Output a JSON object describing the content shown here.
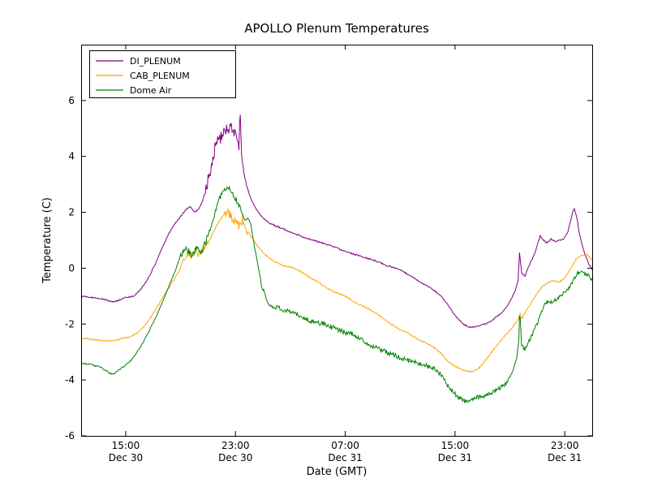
{
  "figure": {
    "background": "#ffffff",
    "frame_color": "#000000"
  },
  "chart_data": {
    "type": "line",
    "title": "APOLLO Plenum Temperatures",
    "xlabel": "Date (GMT)",
    "ylabel": "Temperature (C)",
    "x_unit": "hours since Dec 30 00:00 GMT",
    "xlim": [
      11.75,
      49.0
    ],
    "ylim": [
      -6,
      8
    ],
    "yticks": [
      -6,
      -4,
      -2,
      0,
      2,
      4,
      6
    ],
    "xticks": [
      {
        "t": 15,
        "time": "15:00",
        "date": "Dec 30"
      },
      {
        "t": 23,
        "time": "23:00",
        "date": "Dec 30"
      },
      {
        "t": 31,
        "time": "07:00",
        "date": "Dec 31"
      },
      {
        "t": 39,
        "time": "15:00",
        "date": "Dec 31"
      },
      {
        "t": 47,
        "time": "23:00",
        "date": "Dec 31"
      }
    ],
    "grid": false,
    "legend_position": "upper left",
    "noise_base": 0.025,
    "series": [
      {
        "name": "DI_PLENUM",
        "color": "#800080",
        "noise": [
          {
            "from": 20.8,
            "to": 23.25,
            "amp": 0.22
          }
        ],
        "points": [
          [
            11.75,
            -1.0
          ],
          [
            12.5,
            -1.05
          ],
          [
            13.3,
            -1.1
          ],
          [
            14.0,
            -1.2
          ],
          [
            14.5,
            -1.15
          ],
          [
            15.0,
            -1.05
          ],
          [
            15.6,
            -1.0
          ],
          [
            16.1,
            -0.75
          ],
          [
            16.6,
            -0.4
          ],
          [
            17.1,
            0.1
          ],
          [
            17.6,
            0.65
          ],
          [
            18.1,
            1.2
          ],
          [
            18.6,
            1.6
          ],
          [
            19.0,
            1.85
          ],
          [
            19.4,
            2.1
          ],
          [
            19.7,
            2.2
          ],
          [
            20.0,
            2.0
          ],
          [
            20.3,
            2.1
          ],
          [
            20.6,
            2.4
          ],
          [
            20.9,
            2.9
          ],
          [
            21.2,
            3.6
          ],
          [
            21.5,
            4.3
          ],
          [
            21.8,
            4.6
          ],
          [
            22.1,
            4.8
          ],
          [
            22.4,
            5.0
          ],
          [
            22.7,
            5.1
          ],
          [
            22.9,
            4.9
          ],
          [
            23.1,
            4.5
          ],
          [
            23.25,
            4.2
          ],
          [
            23.33,
            5.8
          ],
          [
            23.45,
            4.0
          ],
          [
            23.65,
            3.3
          ],
          [
            23.9,
            2.8
          ],
          [
            24.2,
            2.4
          ],
          [
            24.6,
            2.05
          ],
          [
            25.0,
            1.8
          ],
          [
            25.5,
            1.6
          ],
          [
            26.0,
            1.5
          ],
          [
            26.5,
            1.4
          ],
          [
            27.0,
            1.3
          ],
          [
            28.0,
            1.1
          ],
          [
            29.0,
            0.95
          ],
          [
            30.0,
            0.8
          ],
          [
            31.0,
            0.6
          ],
          [
            32.0,
            0.45
          ],
          [
            33.0,
            0.3
          ],
          [
            34.0,
            0.1
          ],
          [
            35.0,
            -0.05
          ],
          [
            35.5,
            -0.2
          ],
          [
            36.0,
            -0.35
          ],
          [
            36.5,
            -0.5
          ],
          [
            37.0,
            -0.65
          ],
          [
            37.5,
            -0.8
          ],
          [
            38.0,
            -1.0
          ],
          [
            38.4,
            -1.25
          ],
          [
            38.8,
            -1.55
          ],
          [
            39.2,
            -1.8
          ],
          [
            39.6,
            -2.0
          ],
          [
            40.0,
            -2.1
          ],
          [
            40.4,
            -2.1
          ],
          [
            40.8,
            -2.05
          ],
          [
            41.2,
            -2.0
          ],
          [
            41.6,
            -1.9
          ],
          [
            42.0,
            -1.75
          ],
          [
            42.4,
            -1.6
          ],
          [
            42.8,
            -1.35
          ],
          [
            43.1,
            -1.1
          ],
          [
            43.4,
            -0.8
          ],
          [
            43.6,
            -0.45
          ],
          [
            43.7,
            0.55
          ],
          [
            43.85,
            -0.15
          ],
          [
            44.1,
            -0.3
          ],
          [
            44.4,
            0.1
          ],
          [
            44.8,
            0.5
          ],
          [
            45.2,
            1.15
          ],
          [
            45.45,
            1.0
          ],
          [
            45.7,
            0.9
          ],
          [
            46.0,
            1.05
          ],
          [
            46.3,
            0.95
          ],
          [
            46.6,
            1.0
          ],
          [
            46.9,
            1.05
          ],
          [
            47.2,
            1.25
          ],
          [
            47.55,
            1.95
          ],
          [
            47.7,
            2.15
          ],
          [
            47.9,
            1.75
          ],
          [
            48.1,
            1.15
          ],
          [
            48.45,
            0.5
          ],
          [
            48.75,
            0.15
          ],
          [
            49.0,
            -0.05
          ]
        ]
      },
      {
        "name": "CAB_PLENUM",
        "color": "#ffa500",
        "noise": [
          {
            "from": 19.2,
            "to": 21.0,
            "amp": 0.1
          },
          {
            "from": 22.2,
            "to": 23.9,
            "amp": 0.16
          }
        ],
        "points": [
          [
            11.75,
            -2.5
          ],
          [
            12.5,
            -2.55
          ],
          [
            13.5,
            -2.6
          ],
          [
            14.2,
            -2.6
          ],
          [
            14.8,
            -2.5
          ],
          [
            15.4,
            -2.45
          ],
          [
            15.9,
            -2.3
          ],
          [
            16.4,
            -2.05
          ],
          [
            16.9,
            -1.7
          ],
          [
            17.4,
            -1.3
          ],
          [
            17.9,
            -0.9
          ],
          [
            18.4,
            -0.5
          ],
          [
            18.9,
            -0.1
          ],
          [
            19.2,
            0.3
          ],
          [
            19.5,
            0.5
          ],
          [
            19.8,
            0.45
          ],
          [
            20.1,
            0.55
          ],
          [
            20.4,
            0.5
          ],
          [
            20.7,
            0.7
          ],
          [
            21.0,
            0.9
          ],
          [
            21.3,
            1.2
          ],
          [
            21.6,
            1.5
          ],
          [
            21.9,
            1.75
          ],
          [
            22.2,
            1.95
          ],
          [
            22.5,
            2.0
          ],
          [
            22.7,
            1.8
          ],
          [
            22.9,
            1.7
          ],
          [
            23.1,
            1.6
          ],
          [
            23.3,
            1.5
          ],
          [
            23.5,
            1.75
          ],
          [
            23.7,
            1.6
          ],
          [
            23.9,
            1.3
          ],
          [
            24.2,
            1.1
          ],
          [
            24.6,
            0.8
          ],
          [
            25.0,
            0.55
          ],
          [
            25.5,
            0.35
          ],
          [
            26.0,
            0.2
          ],
          [
            26.5,
            0.1
          ],
          [
            27.0,
            0.05
          ],
          [
            27.5,
            -0.05
          ],
          [
            28.0,
            -0.2
          ],
          [
            28.5,
            -0.35
          ],
          [
            29.0,
            -0.5
          ],
          [
            29.5,
            -0.65
          ],
          [
            30.0,
            -0.8
          ],
          [
            30.5,
            -0.9
          ],
          [
            31.0,
            -1.0
          ],
          [
            31.5,
            -1.15
          ],
          [
            32.0,
            -1.3
          ],
          [
            32.5,
            -1.4
          ],
          [
            33.0,
            -1.55
          ],
          [
            33.5,
            -1.7
          ],
          [
            34.0,
            -1.9
          ],
          [
            34.5,
            -2.05
          ],
          [
            35.0,
            -2.2
          ],
          [
            35.5,
            -2.3
          ],
          [
            36.0,
            -2.45
          ],
          [
            36.5,
            -2.6
          ],
          [
            37.0,
            -2.7
          ],
          [
            37.5,
            -2.85
          ],
          [
            38.0,
            -3.05
          ],
          [
            38.4,
            -3.3
          ],
          [
            38.8,
            -3.45
          ],
          [
            39.2,
            -3.55
          ],
          [
            39.6,
            -3.65
          ],
          [
            40.0,
            -3.7
          ],
          [
            40.4,
            -3.68
          ],
          [
            40.8,
            -3.55
          ],
          [
            41.2,
            -3.3
          ],
          [
            41.6,
            -3.05
          ],
          [
            42.0,
            -2.8
          ],
          [
            42.4,
            -2.55
          ],
          [
            42.8,
            -2.35
          ],
          [
            43.2,
            -2.1
          ],
          [
            43.6,
            -1.85
          ],
          [
            43.72,
            -1.6
          ],
          [
            43.9,
            -1.8
          ],
          [
            44.2,
            -1.5
          ],
          [
            44.6,
            -1.2
          ],
          [
            45.0,
            -0.9
          ],
          [
            45.4,
            -0.65
          ],
          [
            45.8,
            -0.5
          ],
          [
            46.2,
            -0.45
          ],
          [
            46.6,
            -0.5
          ],
          [
            47.0,
            -0.35
          ],
          [
            47.4,
            -0.05
          ],
          [
            47.8,
            0.3
          ],
          [
            48.2,
            0.45
          ],
          [
            48.6,
            0.5
          ],
          [
            49.0,
            0.3
          ]
        ]
      },
      {
        "name": "Dome Air",
        "color": "#008000",
        "noise": [
          {
            "from": 19.0,
            "to": 21.0,
            "amp": 0.16
          },
          {
            "from": 21.0,
            "to": 23.4,
            "amp": 0.09
          },
          {
            "from": 24.8,
            "to": 42.9,
            "amp": 0.08
          },
          {
            "from": 43.85,
            "to": 49.0,
            "amp": 0.07
          }
        ],
        "points": [
          [
            11.75,
            -3.4
          ],
          [
            12.5,
            -3.45
          ],
          [
            13.2,
            -3.55
          ],
          [
            13.8,
            -3.75
          ],
          [
            14.1,
            -3.8
          ],
          [
            14.5,
            -3.65
          ],
          [
            14.9,
            -3.5
          ],
          [
            15.3,
            -3.35
          ],
          [
            15.7,
            -3.1
          ],
          [
            16.1,
            -2.8
          ],
          [
            16.6,
            -2.35
          ],
          [
            17.1,
            -1.85
          ],
          [
            17.6,
            -1.3
          ],
          [
            18.1,
            -0.7
          ],
          [
            18.6,
            -0.1
          ],
          [
            19.0,
            0.45
          ],
          [
            19.3,
            0.75
          ],
          [
            19.6,
            0.55
          ],
          [
            19.9,
            0.5
          ],
          [
            20.2,
            0.8
          ],
          [
            20.5,
            0.6
          ],
          [
            20.8,
            0.9
          ],
          [
            21.1,
            1.3
          ],
          [
            21.4,
            1.8
          ],
          [
            21.7,
            2.3
          ],
          [
            22.0,
            2.7
          ],
          [
            22.3,
            2.9
          ],
          [
            22.6,
            2.85
          ],
          [
            22.9,
            2.6
          ],
          [
            23.2,
            2.3
          ],
          [
            23.5,
            1.95
          ],
          [
            23.7,
            1.7
          ],
          [
            23.9,
            1.8
          ],
          [
            24.1,
            1.6
          ],
          [
            24.3,
            1.0
          ],
          [
            24.6,
            0.2
          ],
          [
            24.9,
            -0.6
          ],
          [
            25.2,
            -1.05
          ],
          [
            25.5,
            -1.3
          ],
          [
            26.0,
            -1.4
          ],
          [
            26.5,
            -1.5
          ],
          [
            27.0,
            -1.55
          ],
          [
            27.5,
            -1.65
          ],
          [
            28.0,
            -1.8
          ],
          [
            28.5,
            -1.9
          ],
          [
            29.0,
            -1.95
          ],
          [
            29.5,
            -2.0
          ],
          [
            30.0,
            -2.1
          ],
          [
            30.5,
            -2.2
          ],
          [
            31.0,
            -2.3
          ],
          [
            31.5,
            -2.35
          ],
          [
            32.0,
            -2.5
          ],
          [
            32.5,
            -2.65
          ],
          [
            33.0,
            -2.8
          ],
          [
            33.5,
            -2.9
          ],
          [
            34.0,
            -3.0
          ],
          [
            34.5,
            -3.1
          ],
          [
            35.0,
            -3.2
          ],
          [
            35.5,
            -3.3
          ],
          [
            36.0,
            -3.35
          ],
          [
            36.5,
            -3.45
          ],
          [
            37.0,
            -3.5
          ],
          [
            37.5,
            -3.6
          ],
          [
            38.0,
            -3.85
          ],
          [
            38.4,
            -4.15
          ],
          [
            38.8,
            -4.4
          ],
          [
            39.2,
            -4.6
          ],
          [
            39.6,
            -4.75
          ],
          [
            40.0,
            -4.8
          ],
          [
            40.4,
            -4.65
          ],
          [
            40.8,
            -4.6
          ],
          [
            41.2,
            -4.55
          ],
          [
            41.6,
            -4.5
          ],
          [
            42.0,
            -4.35
          ],
          [
            42.4,
            -4.25
          ],
          [
            42.8,
            -4.05
          ],
          [
            43.2,
            -3.7
          ],
          [
            43.5,
            -3.2
          ],
          [
            43.65,
            -2.6
          ],
          [
            43.72,
            -1.4
          ],
          [
            43.85,
            -2.75
          ],
          [
            44.1,
            -2.9
          ],
          [
            44.4,
            -2.6
          ],
          [
            44.8,
            -2.2
          ],
          [
            45.2,
            -1.7
          ],
          [
            45.5,
            -1.3
          ],
          [
            45.8,
            -1.15
          ],
          [
            46.1,
            -1.25
          ],
          [
            46.4,
            -1.1
          ],
          [
            46.7,
            -1.0
          ],
          [
            47.0,
            -0.85
          ],
          [
            47.3,
            -0.7
          ],
          [
            47.6,
            -0.45
          ],
          [
            47.9,
            -0.2
          ],
          [
            48.2,
            -0.1
          ],
          [
            48.5,
            -0.2
          ],
          [
            48.8,
            -0.3
          ],
          [
            49.0,
            -0.45
          ]
        ]
      }
    ]
  }
}
